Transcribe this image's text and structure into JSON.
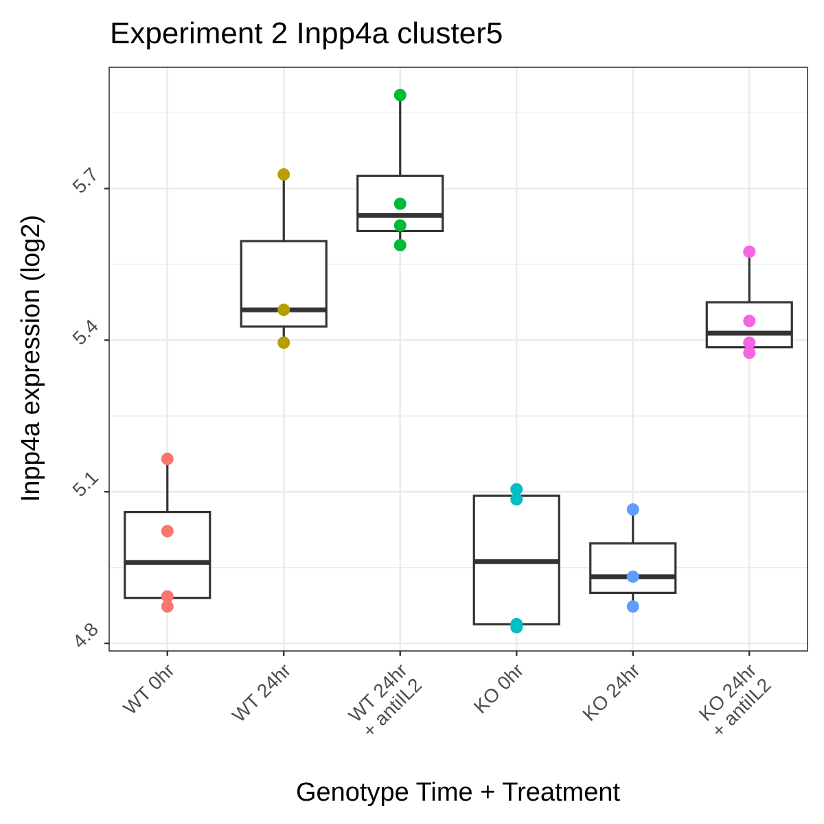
{
  "chart_data": {
    "type": "box",
    "title": "Experiment 2 Inpp4a cluster5",
    "xlabel": "Genotype Time + Treatment",
    "ylabel": "Inpp4a expression (log2)",
    "ylim": [
      4.785,
      5.94
    ],
    "yticks": [
      4.8,
      5.1,
      5.4,
      5.7
    ],
    "ytick_labels": [
      "4.8",
      "5.1",
      "5.4",
      "5.7"
    ],
    "grid": true,
    "legend": "none",
    "categories": [
      {
        "lines": [
          "WT 0hr"
        ]
      },
      {
        "lines": [
          "WT 24hr"
        ]
      },
      {
        "lines": [
          "WT 24hr",
          "+ antiIL2"
        ]
      },
      {
        "lines": [
          "KO 0hr"
        ]
      },
      {
        "lines": [
          "KO 24hr"
        ]
      },
      {
        "lines": [
          "KO 24hr",
          "+ antiIL2"
        ]
      }
    ],
    "series": [
      {
        "color": "#F8766D",
        "box": {
          "min": 4.87,
          "q1": 4.89,
          "median": 4.96,
          "q3": 5.06,
          "max": 5.165
        },
        "points": [
          5.165,
          5.022,
          4.893,
          4.873
        ]
      },
      {
        "color": "#B79F00",
        "box": {
          "min": 5.395,
          "q1": 5.427,
          "median": 5.46,
          "q3": 5.596,
          "max": 5.728
        },
        "points": [
          5.728,
          5.46,
          5.395
        ]
      },
      {
        "color": "#00BA38",
        "box": {
          "min": 5.588,
          "q1": 5.616,
          "median": 5.647,
          "q3": 5.725,
          "max": 5.885
        },
        "points": [
          5.885,
          5.67,
          5.627,
          5.588
        ]
      },
      {
        "color": "#00BFC4",
        "box": {
          "min": 4.835,
          "q1": 4.838,
          "median": 4.962,
          "q3": 5.092,
          "max": 5.105
        },
        "points": [
          5.105,
          5.085,
          4.838,
          4.832
        ]
      },
      {
        "color": "#619CFF",
        "box": {
          "min": 4.873,
          "q1": 4.9,
          "median": 4.932,
          "q3": 4.998,
          "max": 5.065
        },
        "points": [
          5.065,
          4.932,
          4.873
        ]
      },
      {
        "color": "#F564E3",
        "box": {
          "min": 5.375,
          "q1": 5.386,
          "median": 5.414,
          "q3": 5.475,
          "max": 5.575
        },
        "points": [
          5.575,
          5.438,
          5.395,
          5.375
        ]
      }
    ]
  }
}
